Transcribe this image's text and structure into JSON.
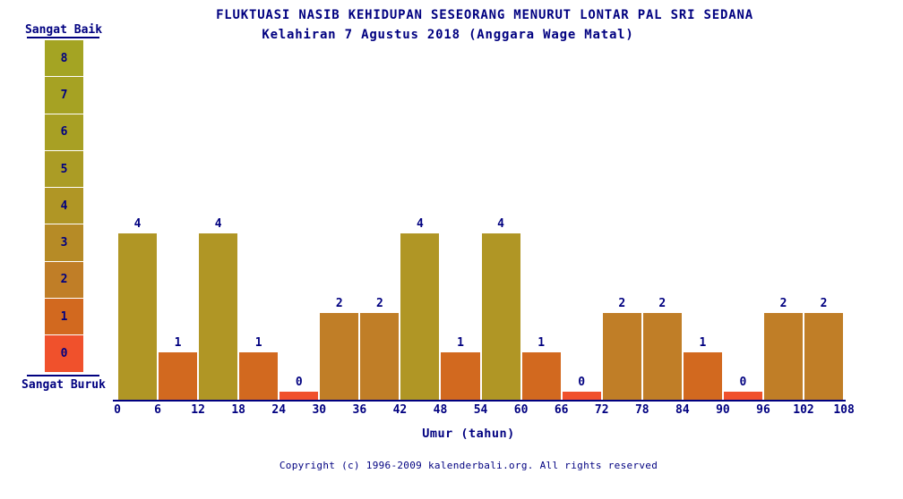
{
  "colors": {
    "background": "#ffffff",
    "text": "#000080",
    "axis": "#000080",
    "scale": [
      "#f0512c",
      "#d2691f",
      "#c07e27",
      "#b68b26",
      "#b09625",
      "#ab9c25",
      "#a8a024",
      "#a6a223",
      "#a4a423"
    ]
  },
  "header": {
    "title": "FLUKTUASI NASIB KEHIDUPAN SESEORANG MENURUT LONTAR PAL SRI SEDANA",
    "subtitle": "Kelahiran 7 Agustus 2018 (Anggara Wage Matal)"
  },
  "legend": {
    "top_label": "Sangat Baik",
    "bottom_label": "Sangat Buruk",
    "levels": [
      8,
      7,
      6,
      5,
      4,
      3,
      2,
      1,
      0
    ]
  },
  "chart_data": {
    "type": "bar",
    "title": "FLUKTUASI NASIB KEHIDUPAN SESEORANG MENURUT LONTAR PAL SRI SEDANA",
    "subtitle": "Kelahiran 7 Agustus 2018 (Anggara Wage Matal)",
    "x_ticks": [
      0,
      6,
      12,
      18,
      24,
      30,
      36,
      42,
      48,
      54,
      60,
      66,
      72,
      78,
      84,
      90,
      96,
      102,
      108
    ],
    "values": [
      4,
      1,
      4,
      1,
      0,
      2,
      2,
      4,
      1,
      4,
      1,
      0,
      2,
      2,
      1,
      0,
      2,
      2
    ],
    "xlabel": "Umur (tahun)",
    "ylabel": "",
    "ylim": [
      0,
      8
    ],
    "grid": false,
    "legend_position": "left",
    "scale_best_label": "Sangat Baik",
    "scale_worst_label": "Sangat Buruk"
  },
  "footer": {
    "copyright": "Copyright (c) 1996-2009 kalenderbali.org. All rights reserved"
  }
}
